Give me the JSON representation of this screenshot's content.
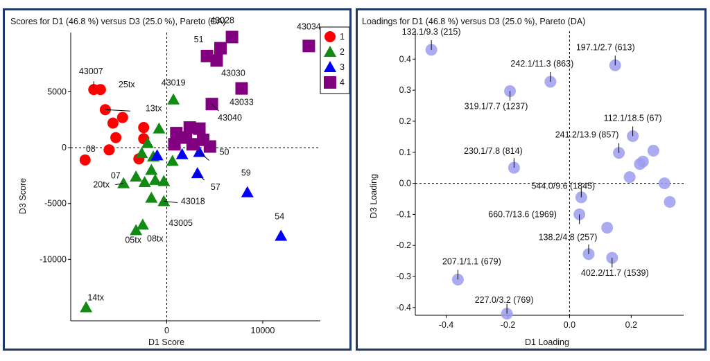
{
  "colors": {
    "frame": "#1f3a68",
    "cluster1": "#ff0000",
    "cluster2": "#138a13",
    "cluster3": "#0000ff",
    "cluster4": "#800080",
    "loading": "#9c9cf0"
  },
  "chart_data": [
    {
      "type": "scatter",
      "title": "Scores for D1 (46.8 %) versus D3 (25.0 %), Pareto (DA)",
      "xlabel": "D1 Score",
      "ylabel": "D3 Score",
      "xlim": [
        -10000,
        16000
      ],
      "ylim": [
        -15500,
        10300
      ],
      "xticks": [
        {
          "value": 0,
          "label": "0"
        },
        {
          "value": 10000,
          "label": "10000"
        }
      ],
      "yticks": [
        {
          "value": 5000,
          "label": "5000"
        },
        {
          "value": 0,
          "label": "0"
        },
        {
          "value": -5000,
          "label": "-5000"
        },
        {
          "value": -10000,
          "label": "-10000"
        }
      ],
      "legend": {
        "position": "top-right",
        "entries": [
          {
            "name": "1",
            "marker": "circle",
            "color": "#ff0000"
          },
          {
            "name": "2",
            "marker": "triangle",
            "color": "#138a13"
          },
          {
            "name": "3",
            "marker": "triangle",
            "color": "#0000ff"
          },
          {
            "name": "4",
            "marker": "square",
            "color": "#800080"
          }
        ]
      },
      "series": [
        {
          "name": "1",
          "marker": "circle",
          "color": "#ff0000",
          "points": [
            {
              "x": -7600,
              "y": 5200,
              "label": "43007"
            },
            {
              "x": -6900,
              "y": 5200,
              "label": "25tx"
            },
            {
              "x": -6400,
              "y": 3400,
              "label": "13tx"
            },
            {
              "x": -4600,
              "y": 2700,
              "label": ""
            },
            {
              "x": -5600,
              "y": 2200,
              "label": ""
            },
            {
              "x": -2400,
              "y": 1800,
              "label": ""
            },
            {
              "x": -5300,
              "y": 900,
              "label": ""
            },
            {
              "x": -2400,
              "y": 800,
              "label": ""
            },
            {
              "x": -6000,
              "y": -200,
              "label": ""
            },
            {
              "x": -8500,
              "y": -1100,
              "label": "08"
            },
            {
              "x": -2900,
              "y": -1000,
              "label": ""
            }
          ]
        },
        {
          "name": "2",
          "marker": "triangle",
          "color": "#138a13",
          "points": [
            {
              "x": 700,
              "y": 4300,
              "label": "43019"
            },
            {
              "x": -800,
              "y": 1700,
              "label": ""
            },
            {
              "x": -2000,
              "y": 400,
              "label": ""
            },
            {
              "x": -2600,
              "y": -500,
              "label": ""
            },
            {
              "x": -1400,
              "y": -800,
              "label": ""
            },
            {
              "x": 600,
              "y": -1200,
              "label": ""
            },
            {
              "x": -1600,
              "y": -2000,
              "label": ""
            },
            {
              "x": -3200,
              "y": -2600,
              "label": ""
            },
            {
              "x": -1200,
              "y": -2900,
              "label": ""
            },
            {
              "x": -4500,
              "y": -3200,
              "label": "20tx"
            },
            {
              "x": -2300,
              "y": -3100,
              "label": ""
            },
            {
              "x": -300,
              "y": -3000,
              "label": ""
            },
            {
              "x": -1600,
              "y": -4500,
              "label": ""
            },
            {
              "x": -300,
              "y": -4800,
              "label": "43018"
            },
            {
              "x": -2500,
              "y": -6900,
              "label": "08tx"
            },
            {
              "x": -3200,
              "y": -7400,
              "label": "05tx"
            },
            {
              "x": -8400,
              "y": -14300,
              "label": "14tx"
            }
          ]
        },
        {
          "name": "3",
          "marker": "triangle",
          "color": "#0000ff",
          "points": [
            {
              "x": -1000,
              "y": -700,
              "label": ""
            },
            {
              "x": 1600,
              "y": -600,
              "label": ""
            },
            {
              "x": 3400,
              "y": -400,
              "label": "50"
            },
            {
              "x": 3200,
              "y": -2300,
              "label": "57"
            },
            {
              "x": 8400,
              "y": -4000,
              "label": "59"
            },
            {
              "x": 11900,
              "y": -7900,
              "label": "54"
            }
          ]
        },
        {
          "name": "4",
          "marker": "square",
          "color": "#800080",
          "points": [
            {
              "x": 6800,
              "y": 9900,
              "label": "43028"
            },
            {
              "x": 14800,
              "y": 9100,
              "label": "43034"
            },
            {
              "x": 5600,
              "y": 8900,
              "label": ""
            },
            {
              "x": 4200,
              "y": 8200,
              "label": "51"
            },
            {
              "x": 5200,
              "y": 7800,
              "label": "43030"
            },
            {
              "x": 7800,
              "y": 5300,
              "label": "43033"
            },
            {
              "x": 4700,
              "y": 3900,
              "label": "43040"
            },
            {
              "x": 2400,
              "y": 1800,
              "label": ""
            },
            {
              "x": 3400,
              "y": 1700,
              "label": ""
            },
            {
              "x": 1000,
              "y": 1300,
              "label": ""
            },
            {
              "x": 2000,
              "y": 900,
              "label": ""
            },
            {
              "x": 3800,
              "y": 700,
              "label": ""
            },
            {
              "x": 800,
              "y": 300,
              "label": ""
            },
            {
              "x": 2700,
              "y": 300,
              "label": ""
            },
            {
              "x": 4500,
              "y": 100,
              "label": ""
            }
          ]
        }
      ],
      "annotations": [
        {
          "text": "43007",
          "x": -7600,
          "y": 5200
        },
        {
          "text": "25tx",
          "x": -6900,
          "y": 5200
        },
        {
          "text": "13tx",
          "x": -6400,
          "y": 3400
        },
        {
          "text": "08",
          "x": -8500,
          "y": -1100
        },
        {
          "text": "07",
          "x": -4600,
          "y": -2000
        },
        {
          "text": "20tx",
          "x": -4500,
          "y": -3200
        },
        {
          "text": "05tx",
          "x": -3200,
          "y": -7400
        },
        {
          "text": "08tx",
          "x": -2500,
          "y": -6900
        },
        {
          "text": "14tx",
          "x": -8400,
          "y": -14300
        },
        {
          "text": "43019",
          "x": 700,
          "y": 4300
        },
        {
          "text": "43018",
          "x": -300,
          "y": -4800
        },
        {
          "text": "43005",
          "x": 300,
          "y": -5900
        },
        {
          "text": "50",
          "x": 3400,
          "y": -400
        },
        {
          "text": "57",
          "x": 3200,
          "y": -2300
        },
        {
          "text": "59",
          "x": 8400,
          "y": -4000
        },
        {
          "text": "54",
          "x": 11900,
          "y": -7900
        },
        {
          "text": "43028",
          "x": 6800,
          "y": 9900
        },
        {
          "text": "43034",
          "x": 14800,
          "y": 9100
        },
        {
          "text": "51",
          "x": 4200,
          "y": 8200
        },
        {
          "text": "43030",
          "x": 5200,
          "y": 7800
        },
        {
          "text": "43033",
          "x": 7800,
          "y": 5300
        },
        {
          "text": "43040",
          "x": 4700,
          "y": 3900
        }
      ]
    },
    {
      "type": "scatter",
      "title": "Loadings for D1 (46.8 %) versus D3 (25.0 %), Pareto (DA)",
      "xlabel": "D1 Loading",
      "ylabel": "D3 Loading",
      "xlim": [
        -0.5,
        0.37
      ],
      "ylim": [
        -0.425,
        0.49
      ],
      "xticks": [
        {
          "value": -0.4,
          "label": "-0.4"
        },
        {
          "value": -0.2,
          "label": "-0.2"
        },
        {
          "value": 0,
          "label": "0.0"
        },
        {
          "value": 0.2,
          "label": "0.2"
        }
      ],
      "yticks": [
        {
          "value": 0.4,
          "label": "0.4"
        },
        {
          "value": 0.3,
          "label": "0.3"
        },
        {
          "value": 0.2,
          "label": "0.2"
        },
        {
          "value": 0.1,
          "label": "0.1"
        },
        {
          "value": 0.0,
          "label": "0.0"
        },
        {
          "value": -0.1,
          "label": "-0.1"
        },
        {
          "value": -0.2,
          "label": "-0.2"
        },
        {
          "value": -0.3,
          "label": "-0.3"
        },
        {
          "value": -0.4,
          "label": "-0.4"
        }
      ],
      "points": [
        {
          "x": -0.448,
          "y": 0.43,
          "label": "132.1/9.3 (215)"
        },
        {
          "x": 0.148,
          "y": 0.38,
          "label": "197.1/2.7 (613)"
        },
        {
          "x": -0.062,
          "y": 0.327,
          "label": "242.1/11.3 (863)"
        },
        {
          "x": -0.193,
          "y": 0.297,
          "label": "319.1/7.7 (1237)"
        },
        {
          "x": 0.205,
          "y": 0.152,
          "label": "112.1/18.5 (67)"
        },
        {
          "x": 0.16,
          "y": 0.098,
          "label": "241.2/13.9 (857)"
        },
        {
          "x": 0.272,
          "y": 0.105,
          "label": ""
        },
        {
          "x": 0.238,
          "y": 0.07,
          "label": ""
        },
        {
          "x": 0.228,
          "y": 0.062,
          "label": ""
        },
        {
          "x": -0.18,
          "y": 0.05,
          "label": "230.1/7.8 (814)"
        },
        {
          "x": 0.195,
          "y": 0.02,
          "label": ""
        },
        {
          "x": 0.308,
          "y": 0.0,
          "label": ""
        },
        {
          "x": 0.325,
          "y": -0.06,
          "label": ""
        },
        {
          "x": 0.038,
          "y": -0.045,
          "label": "544.0/9.6 (1845)"
        },
        {
          "x": 0.032,
          "y": -0.1,
          "label": "660.7/13.6 (1969)"
        },
        {
          "x": 0.122,
          "y": -0.143,
          "label": ""
        },
        {
          "x": 0.062,
          "y": -0.228,
          "label": "138.2/4.8 (257)"
        },
        {
          "x": 0.138,
          "y": -0.24,
          "label": "402.2/11.7 (1539)"
        },
        {
          "x": -0.362,
          "y": -0.31,
          "label": "207.1/1.1 (679)"
        },
        {
          "x": -0.203,
          "y": -0.42,
          "label": "227.0/3.2 (769)"
        }
      ],
      "annotations": [
        {
          "text": "132.1/9.3 (215)",
          "x": -0.448,
          "y": 0.43
        },
        {
          "text": "197.1/2.7 (613)",
          "x": 0.148,
          "y": 0.38
        },
        {
          "text": "242.1/11.3 (863)",
          "x": -0.062,
          "y": 0.327
        },
        {
          "text": "319.1/7.7 (1237)",
          "x": -0.193,
          "y": 0.297
        },
        {
          "text": "112.1/18.5 (67)",
          "x": 0.205,
          "y": 0.152
        },
        {
          "text": "241.2/13.9 (857)",
          "x": 0.16,
          "y": 0.098
        },
        {
          "text": "230.1/7.8 (814)",
          "x": -0.18,
          "y": 0.05
        },
        {
          "text": "544.0/9.6 (1845)",
          "x": 0.038,
          "y": -0.045
        },
        {
          "text": "660.7/13.6 (1969)",
          "x": 0.032,
          "y": -0.1
        },
        {
          "text": "138.2/4.8 (257)",
          "x": 0.062,
          "y": -0.228
        },
        {
          "text": "402.2/11.7 (1539)",
          "x": 0.138,
          "y": -0.24
        },
        {
          "text": "207.1/1.1 (679)",
          "x": -0.362,
          "y": -0.31
        },
        {
          "text": "227.0/3.2 (769)",
          "x": -0.203,
          "y": -0.42
        }
      ]
    }
  ]
}
